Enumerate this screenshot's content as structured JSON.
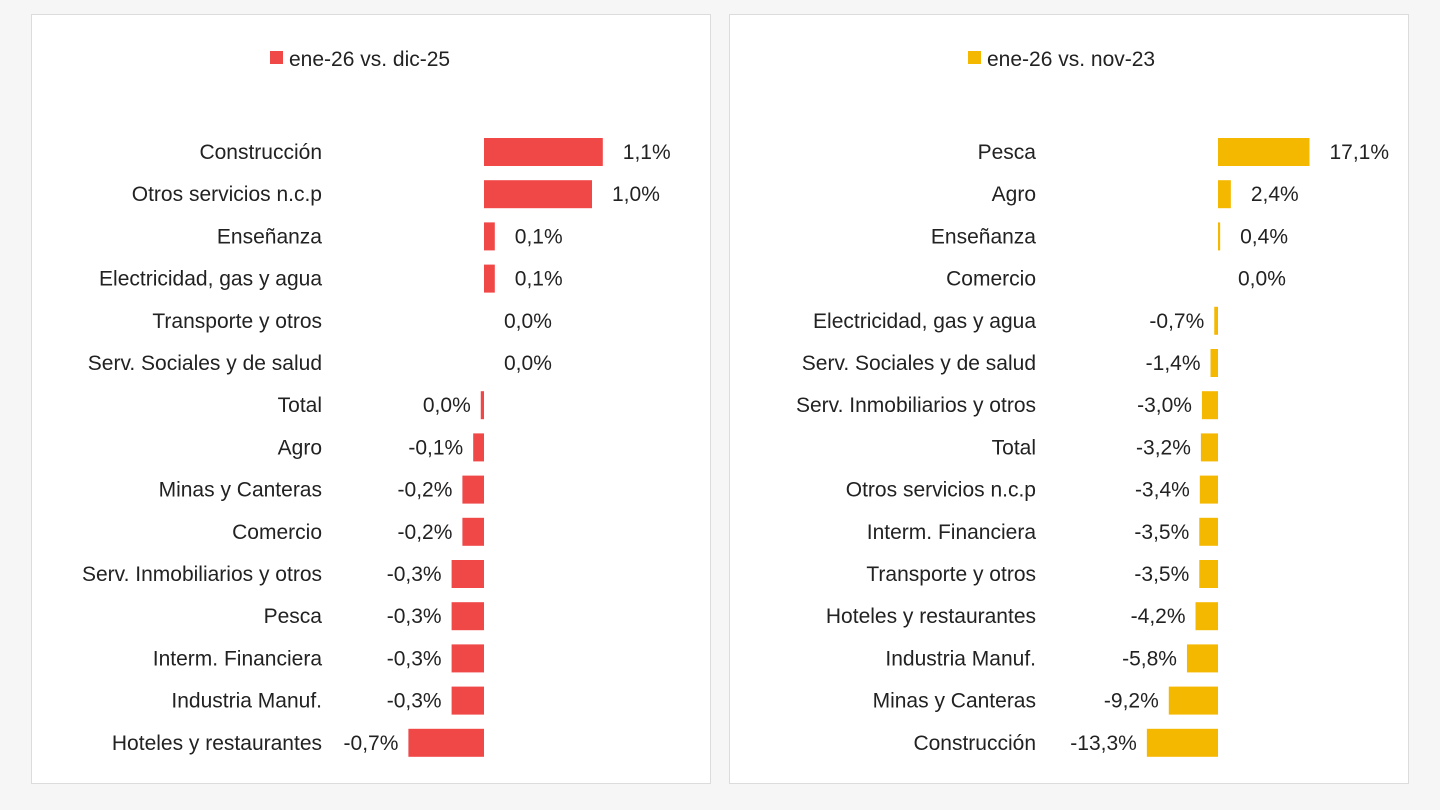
{
  "chart_data": [
    {
      "type": "bar",
      "orientation": "horizontal",
      "legend": "ene-26 vs. dic-25",
      "legend_position": "top-center",
      "color": "#f04747",
      "categories": [
        "Construcción",
        "Otros servicios n.c.p",
        "Enseñanza",
        "Electricidad, gas y agua",
        "Transporte y otros",
        "Serv. Sociales y de salud",
        "Total",
        "Agro",
        "Minas y Canteras",
        "Comercio",
        "Serv. Inmobiliarios y otros",
        "Pesca",
        "Interm. Financiera",
        "Industria Manuf.",
        "Hoteles y restaurantes"
      ],
      "values": [
        1.1,
        1.0,
        0.1,
        0.1,
        0.0,
        0.0,
        -0.03,
        -0.1,
        -0.2,
        -0.2,
        -0.3,
        -0.3,
        -0.3,
        -0.3,
        -0.7
      ],
      "value_labels": [
        "1,1%",
        "1,0%",
        "0,1%",
        "0,1%",
        "0,0%",
        "0,0%",
        "0,0%",
        "-0,1%",
        "-0,2%",
        "-0,2%",
        "-0,3%",
        "-0,3%",
        "-0,3%",
        "-0,3%",
        "-0,7%"
      ],
      "xlim": [
        -0.7,
        1.1
      ],
      "grid": false
    },
    {
      "type": "bar",
      "orientation": "horizontal",
      "legend": "ene-26 vs. nov-23",
      "legend_position": "top-center",
      "color": "#f5b800",
      "categories": [
        "Pesca",
        "Agro",
        "Enseñanza",
        "Comercio",
        "Electricidad, gas y agua",
        "Serv. Sociales y de salud",
        "Serv. Inmobiliarios y otros",
        "Total",
        "Otros servicios n.c.p",
        "Interm. Financiera",
        "Transporte y otros",
        "Hoteles y restaurantes",
        "Industria Manuf.",
        "Minas y Canteras",
        "Construcción"
      ],
      "values": [
        17.1,
        2.4,
        0.4,
        0.0,
        -0.7,
        -1.4,
        -3.0,
        -3.2,
        -3.4,
        -3.5,
        -3.5,
        -4.2,
        -5.8,
        -9.2,
        -13.3
      ],
      "value_labels": [
        "17,1%",
        "2,4%",
        "0,4%",
        "0,0%",
        "-0,7%",
        "-1,4%",
        "-3,0%",
        "-3,2%",
        "-3,4%",
        "-3,5%",
        "-3,5%",
        "-4,2%",
        "-5,8%",
        "-9,2%",
        "-13,3%"
      ],
      "xlim": [
        -13.3,
        17.1
      ],
      "grid": false
    }
  ]
}
